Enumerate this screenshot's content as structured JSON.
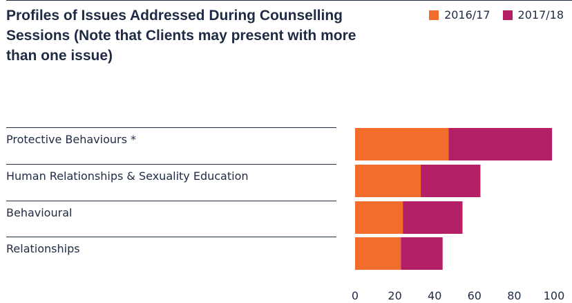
{
  "title": "Profiles of Issues Addressed During Counselling Sessions (Note that Clients may present with more than one issue)",
  "chart_data": {
    "type": "bar",
    "orientation": "horizontal",
    "stacked": true,
    "categories": [
      "Protective Behaviours *",
      "Human Relationships & Sexuality Education",
      "Behavioural",
      "Relationships"
    ],
    "series": [
      {
        "name": "2016/17",
        "color": "#f26d2b",
        "values": [
          47,
          33,
          24,
          23
        ]
      },
      {
        "name": "2017/18",
        "color": "#b51f66",
        "values": [
          52,
          30,
          30,
          21
        ]
      }
    ],
    "xlim": [
      0,
      100
    ],
    "xticks": [
      "0",
      "20",
      "40",
      "60",
      "80",
      "100"
    ],
    "legend_position": "top-right",
    "grid": false
  }
}
